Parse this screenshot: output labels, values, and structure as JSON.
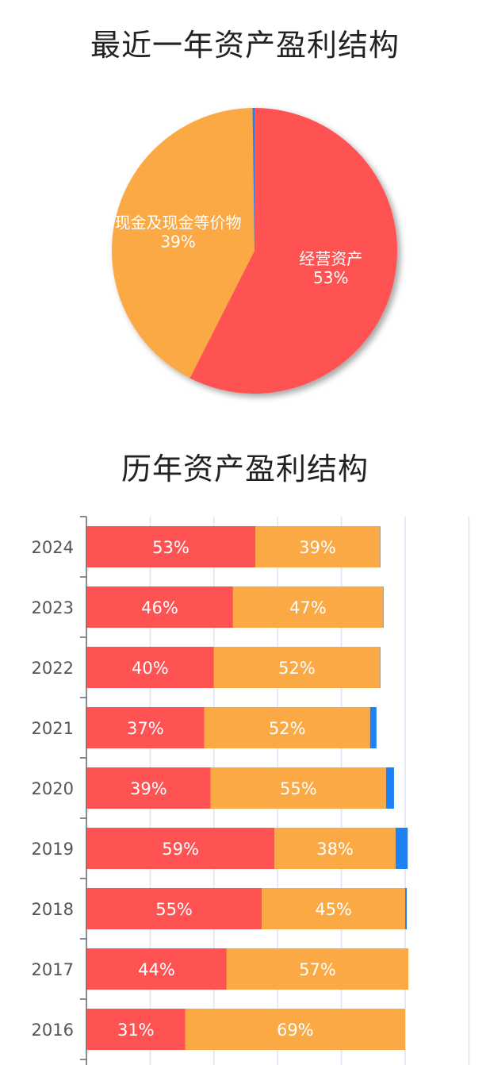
{
  "colors": {
    "operating": "#ff5353",
    "cash": "#fba944",
    "other": "#1e82f5",
    "grid": "#dfe3f3",
    "axis": "#666666"
  },
  "chart_data": [
    {
      "type": "pie",
      "title": "最近一年资产盈利结构",
      "slices": [
        {
          "name": "经营资产",
          "value": 53,
          "label": "53%",
          "color": "#ff5353",
          "labeled": true
        },
        {
          "name": "现金及现金等价物",
          "value": 39,
          "label": "39%",
          "color": "#fba944",
          "labeled": true
        },
        {
          "name": "",
          "value": 0.2,
          "label": "",
          "color": "#1e82f5",
          "labeled": false
        }
      ]
    },
    {
      "type": "bar",
      "orientation": "horizontal",
      "stacked": true,
      "title": "历年资产盈利结构",
      "categories": [
        "2024",
        "2023",
        "2022",
        "2021",
        "2020",
        "2019",
        "2018",
        "2017",
        "2016"
      ],
      "xlim": [
        0,
        120
      ],
      "grid": true,
      "series": [
        {
          "color": "#ff5353",
          "values": [
            53,
            46,
            40,
            37,
            39,
            59,
            55,
            44,
            31
          ]
        },
        {
          "color": "#fba944",
          "values": [
            39,
            47,
            52,
            52,
            55,
            38,
            45,
            57,
            69
          ]
        },
        {
          "color": "#1e82f5",
          "values": [
            0.2,
            0.2,
            0.2,
            2,
            2.5,
            3.8,
            0.5,
            0,
            0
          ]
        }
      ]
    }
  ]
}
